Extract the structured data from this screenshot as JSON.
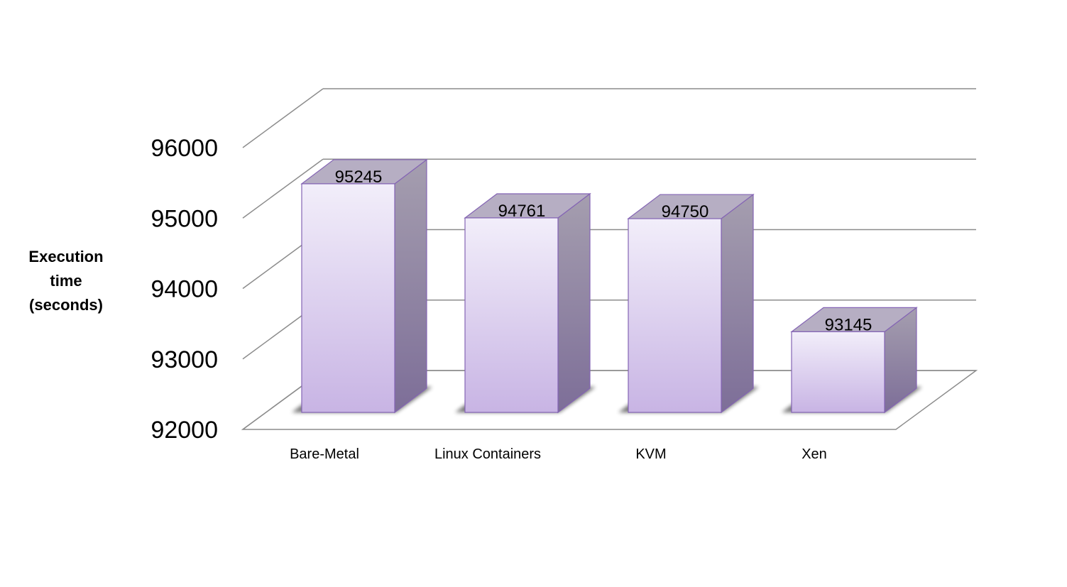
{
  "chart_data": {
    "type": "bar",
    "title": "",
    "xlabel": "",
    "ylabel_lines": [
      "Execution",
      "time",
      "(seconds)"
    ],
    "categories": [
      "Bare-Metal",
      "Linux Containers",
      "KVM",
      "Xen"
    ],
    "values": [
      95245,
      94761,
      94750,
      93145
    ],
    "data_labels": [
      "95245",
      "94761",
      "94750",
      "93145"
    ],
    "y_ticks": [
      "92000",
      "93000",
      "94000",
      "95000",
      "96000"
    ],
    "ylim": [
      92000,
      96000
    ],
    "grid": true,
    "legend": "none",
    "style": "3d-column",
    "colors": {
      "front_top": "#f2eefa",
      "front_bottom": "#c8b4e4",
      "side_top": "#a59eaf",
      "side_bottom": "#7d6e98",
      "top_face": "#b6aec3",
      "edge": "#8464b4",
      "grid": "#8c8c8c"
    }
  }
}
